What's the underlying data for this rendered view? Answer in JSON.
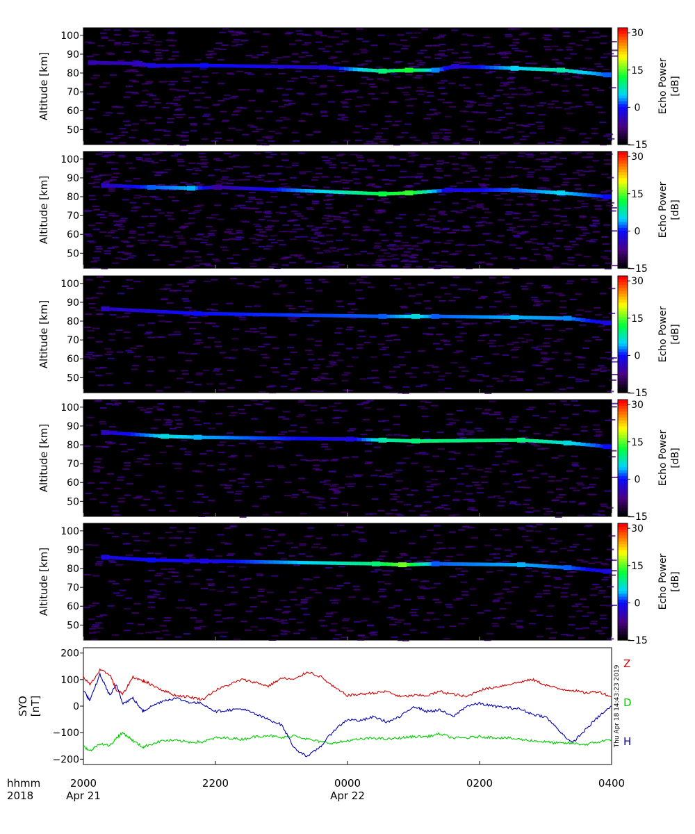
{
  "colors": {
    "background": "#000000",
    "echo_colorscale": [
      "#000000",
      "#4b0082",
      "#0000ff",
      "#00d8ff",
      "#00ff40",
      "#ffff00",
      "#ff0000"
    ],
    "Z": "#cc0000",
    "D": "#00cc00",
    "H": "#0000aa"
  },
  "chart_data": [
    {
      "type": "heatmap",
      "panel": 1,
      "ylabel": "Altitude [km]",
      "ylim": [
        42,
        104
      ],
      "yticks": [
        "100",
        "90",
        "80",
        "70",
        "60",
        "50"
      ],
      "colorbar": {
        "label": [
          "Echo Power",
          "[dB]"
        ],
        "range": [
          -15,
          32
        ],
        "ticks": [
          "30",
          "15",
          "0",
          "−15"
        ]
      },
      "echo_layer": [
        {
          "t": 20.1,
          "alt": 85.5,
          "db": -5
        },
        {
          "t": 20.8,
          "alt": 85.0,
          "db": -4
        },
        {
          "t": 21.0,
          "alt": 84.0,
          "db": -2
        },
        {
          "t": 21.8,
          "alt": 84.0,
          "db": 0
        },
        {
          "t": 23.6,
          "alt": 83.0,
          "db": -3
        },
        {
          "t": 24.5,
          "alt": 81.0,
          "db": 10
        },
        {
          "t": 24.9,
          "alt": 81.5,
          "db": 13
        },
        {
          "t": 25.3,
          "alt": 81.5,
          "db": 3
        },
        {
          "t": 25.6,
          "alt": 83.5,
          "db": -3
        },
        {
          "t": 26.5,
          "alt": 82.5,
          "db": 5
        },
        {
          "t": 27.2,
          "alt": 81.5,
          "db": 8
        },
        {
          "t": 27.9,
          "alt": 79.0,
          "db": 2
        }
      ]
    },
    {
      "type": "heatmap",
      "panel": 2,
      "ylabel": "Altitude [km]",
      "ylim": [
        42,
        104
      ],
      "yticks": [
        "100",
        "90",
        "80",
        "70",
        "60",
        "50"
      ],
      "colorbar": {
        "label": [
          "Echo Power",
          "[dB]"
        ],
        "range": [
          -15,
          32
        ],
        "ticks": [
          "30",
          "15",
          "0",
          "−15"
        ]
      },
      "echo_layer": [
        {
          "t": 20.3,
          "alt": 86.0,
          "db": -4
        },
        {
          "t": 21.0,
          "alt": 85.0,
          "db": 2
        },
        {
          "t": 21.6,
          "alt": 84.5,
          "db": 4
        },
        {
          "t": 22.0,
          "alt": 85.0,
          "db": -6
        },
        {
          "t": 24.5,
          "alt": 81.5,
          "db": 12
        },
        {
          "t": 24.9,
          "alt": 82.0,
          "db": 14
        },
        {
          "t": 25.5,
          "alt": 83.5,
          "db": -2
        },
        {
          "t": 26.5,
          "alt": 83.5,
          "db": 2
        },
        {
          "t": 27.2,
          "alt": 82.0,
          "db": 5
        },
        {
          "t": 27.9,
          "alt": 80.0,
          "db": 0
        }
      ]
    },
    {
      "type": "heatmap",
      "panel": 3,
      "ylabel": "Altitude [km]",
      "ylim": [
        42,
        104
      ],
      "yticks": [
        "100",
        "90",
        "80",
        "70",
        "60",
        "50"
      ],
      "colorbar": {
        "label": [
          "Echo Power",
          "[dB]"
        ],
        "range": [
          -15,
          32
        ],
        "ticks": [
          "30",
          "15",
          "0",
          "−15"
        ]
      },
      "echo_layer": [
        {
          "t": 20.3,
          "alt": 86.5,
          "db": -4
        },
        {
          "t": 21.7,
          "alt": 84.0,
          "db": 0
        },
        {
          "t": 24.5,
          "alt": 82.5,
          "db": 2
        },
        {
          "t": 25.0,
          "alt": 82.5,
          "db": 6
        },
        {
          "t": 25.3,
          "alt": 82.5,
          "db": 2
        },
        {
          "t": 26.5,
          "alt": 82.0,
          "db": 4
        },
        {
          "t": 27.3,
          "alt": 81.5,
          "db": 3
        },
        {
          "t": 27.9,
          "alt": 79.0,
          "db": -2
        }
      ]
    },
    {
      "type": "heatmap",
      "panel": 4,
      "ylabel": "Altitude [km]",
      "ylim": [
        42,
        104
      ],
      "yticks": [
        "100",
        "90",
        "80",
        "70",
        "60",
        "50"
      ],
      "colorbar": {
        "label": [
          "Echo Power",
          "[dB]"
        ],
        "range": [
          -15,
          32
        ],
        "ticks": [
          "30",
          "15",
          "0",
          "−15"
        ]
      },
      "echo_layer": [
        {
          "t": 20.3,
          "alt": 86.5,
          "db": -4
        },
        {
          "t": 21.2,
          "alt": 84.5,
          "db": 6
        },
        {
          "t": 21.7,
          "alt": 84.0,
          "db": 4
        },
        {
          "t": 24.0,
          "alt": 83.0,
          "db": -2
        },
        {
          "t": 24.5,
          "alt": 82.5,
          "db": 8
        },
        {
          "t": 25.0,
          "alt": 82.0,
          "db": 10
        },
        {
          "t": 26.6,
          "alt": 82.5,
          "db": 10
        },
        {
          "t": 27.3,
          "alt": 81.0,
          "db": 6
        },
        {
          "t": 27.9,
          "alt": 79.0,
          "db": 0
        }
      ]
    },
    {
      "type": "heatmap",
      "panel": 5,
      "ylabel": "Altitude [km]",
      "ylim": [
        42,
        104
      ],
      "yticks": [
        "100",
        "90",
        "80",
        "70",
        "60",
        "50"
      ],
      "colorbar": {
        "label": [
          "Echo Power",
          "[dB]"
        ],
        "range": [
          -15,
          32
        ],
        "ticks": [
          "30",
          "15",
          "0",
          "−15"
        ]
      },
      "echo_layer": [
        {
          "t": 20.3,
          "alt": 86.0,
          "db": -2
        },
        {
          "t": 21.0,
          "alt": 84.5,
          "db": 0
        },
        {
          "t": 21.8,
          "alt": 84.0,
          "db": -2
        },
        {
          "t": 24.4,
          "alt": 82.5,
          "db": 10
        },
        {
          "t": 24.8,
          "alt": 82.0,
          "db": 16
        },
        {
          "t": 25.3,
          "alt": 82.5,
          "db": 2
        },
        {
          "t": 26.6,
          "alt": 82.0,
          "db": 4
        },
        {
          "t": 27.3,
          "alt": 80.5,
          "db": 2
        },
        {
          "t": 27.9,
          "alt": 78.5,
          "db": -2
        }
      ]
    },
    {
      "type": "line",
      "panel": 6,
      "ylabel": [
        "SYO",
        "[nT]"
      ],
      "ylim": [
        -220,
        220
      ],
      "yticks": [
        "200",
        "100",
        "0",
        "−100",
        "−200"
      ],
      "timestamp": "Thu Apr 18 14:43:23 2019",
      "series": [
        {
          "name": "Z",
          "color": "#cc0000",
          "x": [
            20.0,
            20.1,
            20.25,
            20.4,
            20.5,
            20.6,
            20.75,
            20.9,
            21.0,
            21.2,
            21.4,
            21.6,
            21.8,
            22.0,
            22.2,
            22.4,
            22.6,
            22.8,
            23.0,
            23.2,
            23.4,
            23.6,
            23.8,
            24.0,
            24.2,
            24.4,
            24.6,
            24.8,
            25.0,
            25.2,
            25.4,
            25.6,
            25.8,
            26.0,
            26.2,
            26.4,
            26.6,
            26.8,
            27.0,
            27.2,
            27.4,
            27.6,
            27.8,
            28.0
          ],
          "y": [
            110,
            80,
            135,
            120,
            60,
            45,
            110,
            95,
            85,
            60,
            40,
            35,
            25,
            60,
            80,
            100,
            90,
            75,
            105,
            100,
            130,
            110,
            70,
            40,
            45,
            50,
            55,
            35,
            40,
            40,
            55,
            45,
            35,
            60,
            70,
            80,
            90,
            100,
            80,
            65,
            60,
            50,
            55,
            35
          ]
        },
        {
          "name": "D",
          "color": "#00cc00",
          "x": [
            20.0,
            20.1,
            20.25,
            20.4,
            20.5,
            20.6,
            20.75,
            20.9,
            21.0,
            21.2,
            21.4,
            21.6,
            21.8,
            22.0,
            22.2,
            22.4,
            22.6,
            22.8,
            23.0,
            23.2,
            23.4,
            23.6,
            23.8,
            24.0,
            24.2,
            24.4,
            24.6,
            24.8,
            25.0,
            25.2,
            25.4,
            25.6,
            25.8,
            26.0,
            26.2,
            26.4,
            26.6,
            26.8,
            27.0,
            27.2,
            27.4,
            27.6,
            27.8,
            28.0
          ],
          "y": [
            -150,
            -170,
            -140,
            -150,
            -120,
            -100,
            -130,
            -155,
            -145,
            -130,
            -130,
            -135,
            -135,
            -120,
            -120,
            -125,
            -115,
            -110,
            -120,
            -110,
            -125,
            -135,
            -140,
            -130,
            -125,
            -120,
            -125,
            -120,
            -115,
            -115,
            -105,
            -120,
            -120,
            -115,
            -118,
            -120,
            -125,
            -130,
            -135,
            -140,
            -140,
            -145,
            -135,
            -125
          ]
        },
        {
          "name": "H",
          "color": "#0000aa",
          "x": [
            20.0,
            20.1,
            20.25,
            20.4,
            20.5,
            20.6,
            20.75,
            20.9,
            21.0,
            21.2,
            21.4,
            21.6,
            21.8,
            22.0,
            22.2,
            22.4,
            22.6,
            22.8,
            23.0,
            23.2,
            23.4,
            23.6,
            23.8,
            24.0,
            24.2,
            24.4,
            24.6,
            24.8,
            25.0,
            25.2,
            25.4,
            25.6,
            25.8,
            26.0,
            26.2,
            26.4,
            26.6,
            26.8,
            27.0,
            27.2,
            27.4,
            27.6,
            27.8,
            28.0
          ],
          "y": [
            60,
            20,
            120,
            40,
            80,
            10,
            30,
            -20,
            -5,
            20,
            30,
            15,
            10,
            -20,
            -15,
            -10,
            -30,
            -50,
            -70,
            -160,
            -190,
            -150,
            -90,
            -50,
            -55,
            -40,
            -60,
            -40,
            0,
            -20,
            -15,
            -40,
            0,
            10,
            0,
            -5,
            -10,
            -30,
            -40,
            -90,
            -140,
            -90,
            -40,
            0
          ]
        }
      ]
    }
  ],
  "x_axis": {
    "row1_label": "hhmm",
    "row2_label": "2018",
    "ticks": [
      {
        "t": 20.0,
        "label": "2000",
        "date": "Apr 21"
      },
      {
        "t": 22.0,
        "label": "2200",
        "date": ""
      },
      {
        "t": 24.0,
        "label": "0000",
        "date": "Apr 22"
      },
      {
        "t": 26.0,
        "label": "0200",
        "date": ""
      },
      {
        "t": 28.0,
        "label": "0400",
        "date": ""
      }
    ],
    "xlim": [
      20.0,
      28.0
    ]
  }
}
